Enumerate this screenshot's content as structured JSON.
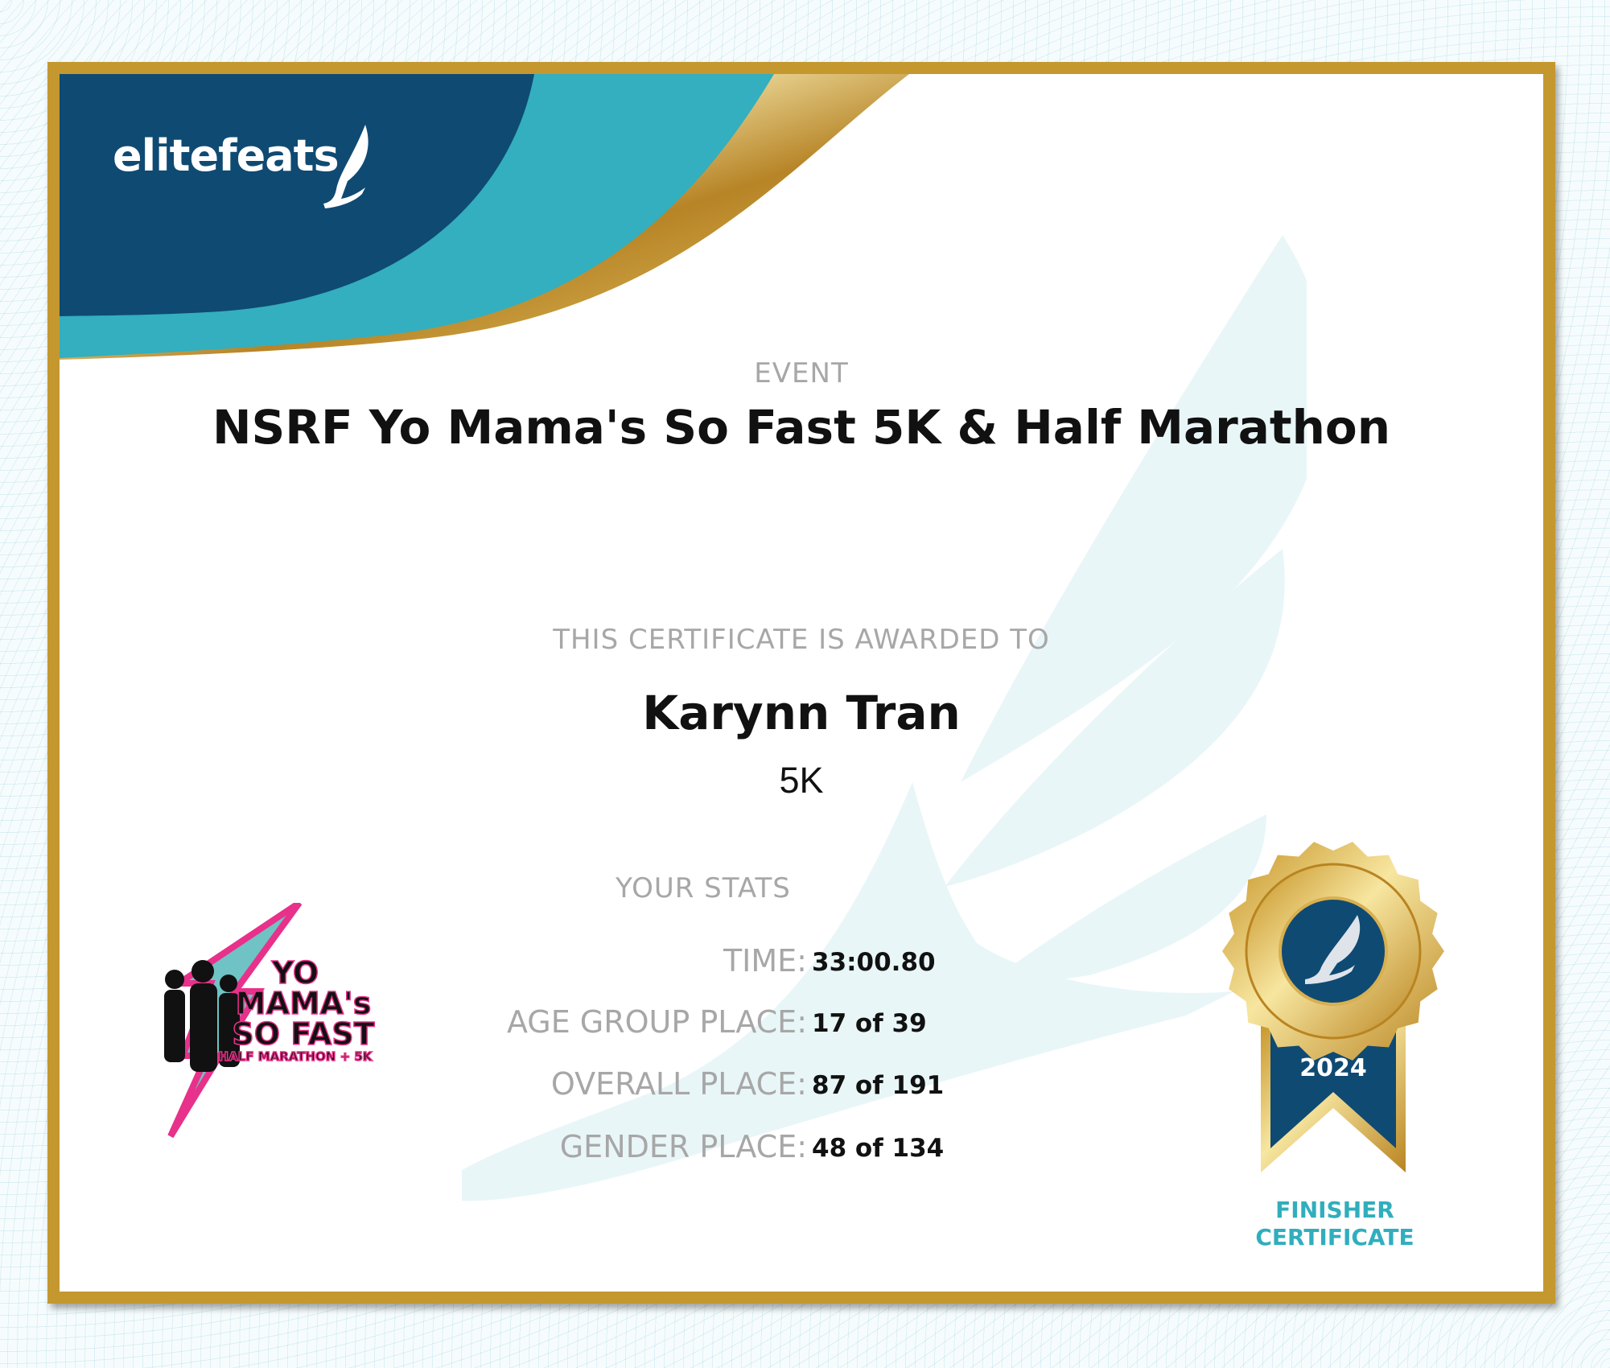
{
  "brand": {
    "name": "elitefeats"
  },
  "certificate": {
    "event_label": "EVENT",
    "event_title": "NSRF Yo Mama's So Fast 5K & Half Marathon",
    "awarded_label": "THIS CERTIFICATE IS AWARDED TO",
    "recipient": "Karynn Tran",
    "distance": "5K",
    "stats_label": "YOUR STATS",
    "stats": [
      {
        "label": "TIME:",
        "value": "33:00.80"
      },
      {
        "label": "AGE GROUP PLACE:",
        "value": "17 of 39"
      },
      {
        "label": "OVERALL PLACE:",
        "value": "87 of 191"
      },
      {
        "label": "GENDER PLACE:",
        "value": "48 of 134"
      }
    ]
  },
  "event_logo": {
    "line1": "YO",
    "line2": "MAMA's",
    "line3": "SO FAST",
    "line4": "HALF MARATHON + 5K"
  },
  "badge": {
    "year": "2024",
    "caption_line1": "FINISHER",
    "caption_line2": "CERTIFICATE",
    "icon": "winged-foot-icon"
  },
  "colors": {
    "navy": "#0f4a73",
    "teal": "#33afbf",
    "gold": "#c4982f",
    "pink": "#e8318a"
  }
}
